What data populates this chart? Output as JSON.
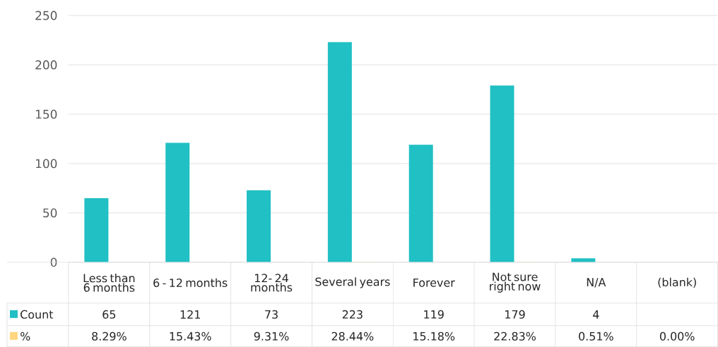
{
  "chart_data": {
    "type": "bar",
    "categories": [
      "Less than 6 months",
      "6 - 12 months",
      "12- 24 months",
      "Several years",
      "Forever",
      "Not sure right now",
      "N/A",
      "(blank)"
    ],
    "series": [
      {
        "name": "Count",
        "color": "#20c0c4",
        "values": [
          65,
          121,
          73,
          223,
          119,
          179,
          4,
          null
        ],
        "value_labels": [
          "65",
          "121",
          "73",
          "223",
          "119",
          "179",
          "4",
          null
        ]
      },
      {
        "name": "%",
        "color": "#ffd57f",
        "values": [
          0.0829,
          0.1543,
          0.0931,
          0.2844,
          0.1518,
          0.2283,
          0.0051,
          0
        ],
        "value_labels": [
          "8.29%",
          "15.43%",
          "9.31%",
          "28.44%",
          "15.18%",
          "22.83%",
          "0.51%",
          "0.00%"
        ]
      }
    ],
    "ylim": [
      0,
      250
    ],
    "yticks": [
      0,
      50,
      100,
      150,
      200,
      250
    ],
    "grid": "y",
    "legend": "bottom left"
  }
}
